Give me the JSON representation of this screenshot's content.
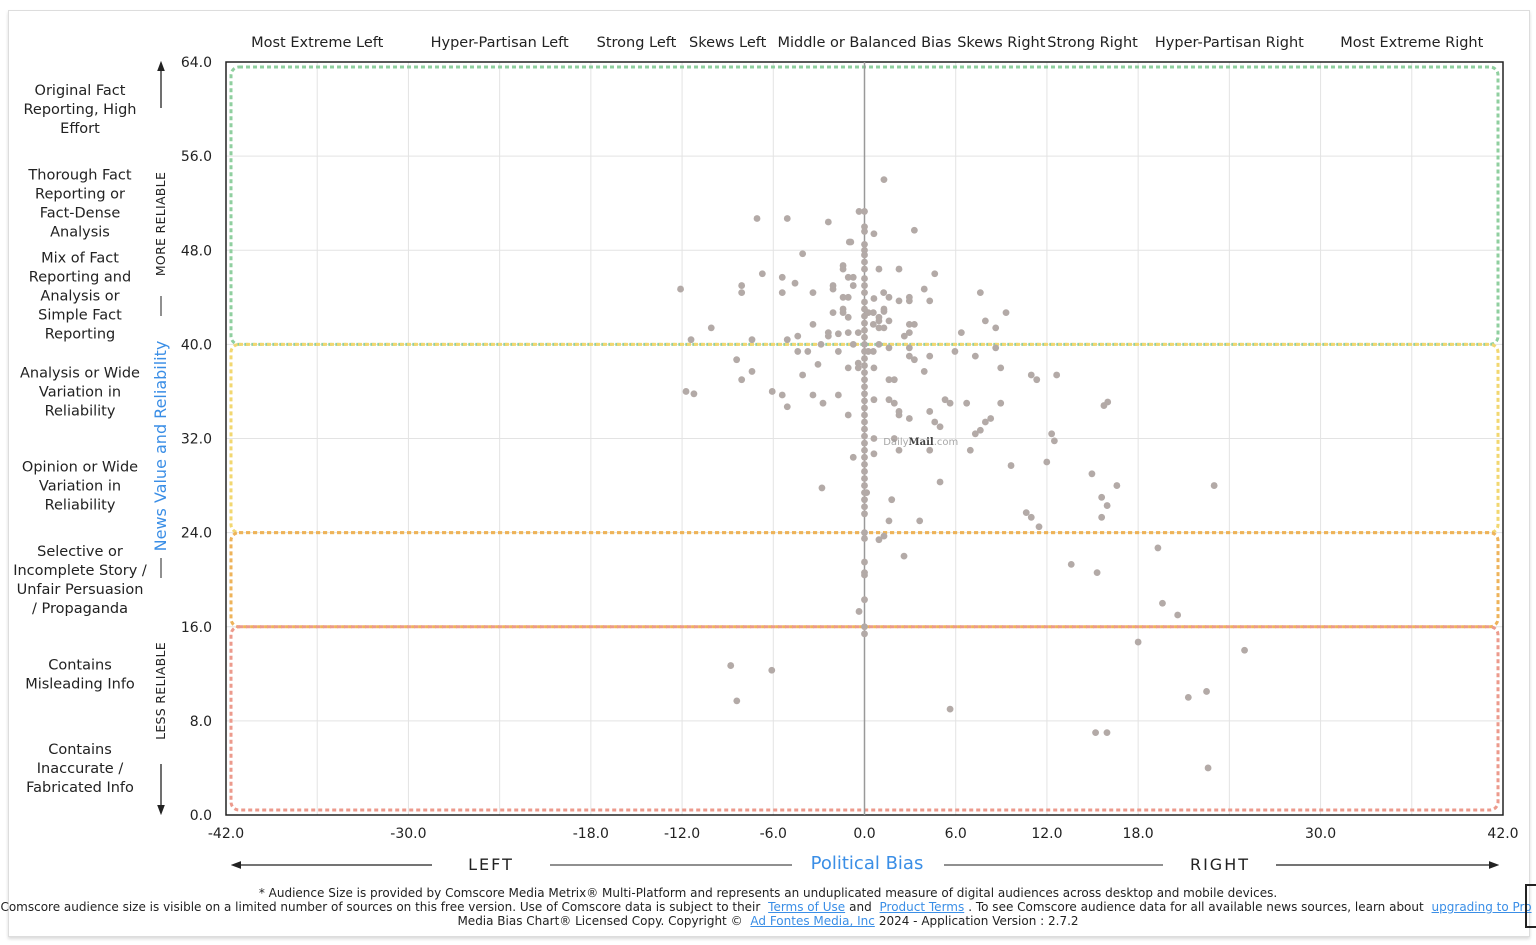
{
  "chart_data": {
    "type": "scatter",
    "xlabel": "Political Bias",
    "ylabel": "News Value and Reliability",
    "xlim": [
      -42,
      42
    ],
    "ylim": [
      0,
      64
    ],
    "x_ticks": [
      "-42.0",
      "-30.0",
      "-18.0",
      "-12.0",
      "-6.0",
      "0.0",
      "6.0",
      "12.0",
      "18.0",
      "30.0",
      "42.0"
    ],
    "y_ticks": [
      "0.0",
      "8.0",
      "16.0",
      "24.0",
      "32.0",
      "40.0",
      "48.0",
      "56.0",
      "64.0"
    ],
    "grid": true,
    "bias_categories": [
      "Most Extreme Left",
      "Hyper-Partisan Left",
      "Strong Left",
      "Skews Left",
      "Middle or Balanced Bias",
      "Skews Right",
      "Strong Right",
      "Hyper-Partisan Right",
      "Most Extreme Right"
    ],
    "reliability_categories": [
      "Original Fact Reporting, High Effort",
      "Thorough Fact Reporting or Fact-Dense Analysis",
      "Mix of Fact Reporting and Analysis or Simple Fact Reporting",
      "Analysis or Wide Variation in Reliability",
      "Opinion or Wide Variation in Reliability",
      "Selective or Incomplete Story / Unfair Persuasion / Propaganda",
      "Contains Misleading Info",
      "Contains Inaccurate / Fabricated Info"
    ],
    "reliability_bands": [
      {
        "from": 40,
        "to": 64,
        "color": "#8fcf9f"
      },
      {
        "from": 24,
        "to": 40,
        "color": "#f2d770"
      },
      {
        "from": 16,
        "to": 24,
        "color": "#eeb35a"
      },
      {
        "from": 0,
        "to": 16,
        "color": "#ec9a8c"
      }
    ],
    "more_reliable_label": "MORE RELIABLE",
    "less_reliable_label": "LESS RELIABLE",
    "left_label": "LEFT",
    "right_label": "RIGHT",
    "point_color": "#b3aaa7",
    "accent_color": "#3a8ee6",
    "labeled_point": {
      "label": "DailyMail.com",
      "x": 3.7,
      "y": 31.8
    },
    "points": [
      [
        1.28,
        54.0
      ],
      [
        -0.36,
        51.3
      ],
      [
        0,
        51.3
      ],
      [
        -7.07,
        50.7
      ],
      [
        -5.08,
        50.7
      ],
      [
        -2.38,
        50.4
      ],
      [
        3.28,
        49.7
      ],
      [
        0.62,
        49.4
      ],
      [
        -1.0,
        48.7
      ],
      [
        -0.9,
        48.7
      ],
      [
        -4.07,
        47.7
      ],
      [
        0.95,
        46.4
      ],
      [
        2.27,
        46.4
      ],
      [
        -1.41,
        46.7
      ],
      [
        -1.41,
        46.4
      ],
      [
        -6.72,
        46.0
      ],
      [
        4.62,
        46.0
      ],
      [
        -12.1,
        44.7
      ],
      [
        -8.08,
        45.0
      ],
      [
        -8.08,
        44.4
      ],
      [
        -5.41,
        45.7
      ],
      [
        -5.41,
        44.4
      ],
      [
        -4.57,
        45.2
      ],
      [
        -3.39,
        44.4
      ],
      [
        -2.07,
        45.0
      ],
      [
        -2.07,
        44.7
      ],
      [
        -1.07,
        45.7
      ],
      [
        -0.74,
        45.7
      ],
      [
        -0.74,
        45.0
      ],
      [
        -1.41,
        44.0
      ],
      [
        -1.07,
        44.0
      ],
      [
        3.93,
        44.7
      ],
      [
        1.26,
        44.4
      ],
      [
        1.61,
        44.0
      ],
      [
        2.27,
        43.7
      ],
      [
        2.95,
        44.0
      ],
      [
        2.95,
        43.7
      ],
      [
        4.29,
        43.7
      ],
      [
        7.62,
        44.4
      ],
      [
        9.31,
        42.7
      ],
      [
        7.95,
        42.0
      ],
      [
        8.63,
        41.4
      ],
      [
        6.37,
        41.0
      ],
      [
        8.63,
        39.7
      ],
      [
        0.62,
        43.9
      ],
      [
        1.28,
        43.0
      ],
      [
        1.28,
        42.8
      ],
      [
        -2.07,
        42.7
      ],
      [
        -1.41,
        43.0
      ],
      [
        -1.41,
        42.7
      ],
      [
        -1.07,
        42.3
      ],
      [
        0.25,
        42.7
      ],
      [
        0.58,
        42.7
      ],
      [
        0.95,
        42.3
      ],
      [
        0.58,
        41.7
      ],
      [
        0.95,
        42.0
      ],
      [
        1.61,
        42.0
      ],
      [
        0.95,
        41.4
      ],
      [
        1.28,
        41.4
      ],
      [
        2.95,
        41.7
      ],
      [
        3.28,
        41.7
      ],
      [
        2.95,
        41.0
      ],
      [
        2.62,
        40.7
      ],
      [
        -10.08,
        41.4
      ],
      [
        -11.41,
        40.4
      ],
      [
        -7.4,
        40.4
      ],
      [
        -5.08,
        40.4
      ],
      [
        -4.39,
        40.7
      ],
      [
        -3.39,
        41.7
      ],
      [
        -2.38,
        41.0
      ],
      [
        -2.38,
        40.7
      ],
      [
        -1.72,
        40.9
      ],
      [
        -1.07,
        41.0
      ],
      [
        -0.41,
        41.0
      ],
      [
        -2.86,
        40.0
      ],
      [
        -0.74,
        40.0
      ],
      [
        0.95,
        40.0
      ],
      [
        1.61,
        39.7
      ],
      [
        -4.39,
        39.4
      ],
      [
        -3.73,
        39.4
      ],
      [
        -1.72,
        39.4
      ],
      [
        0.25,
        39.4
      ],
      [
        0.58,
        39.4
      ],
      [
        2.95,
        39.7
      ],
      [
        2.95,
        39.0
      ],
      [
        3.28,
        38.7
      ],
      [
        4.29,
        39.0
      ],
      [
        5.95,
        39.4
      ],
      [
        7.29,
        39.0
      ],
      [
        -8.41,
        38.7
      ],
      [
        -7.4,
        37.7
      ],
      [
        -8.08,
        37.0
      ],
      [
        -4.07,
        37.4
      ],
      [
        -3.06,
        38.3
      ],
      [
        -1.07,
        38.0
      ],
      [
        -0.41,
        38.4
      ],
      [
        -0.41,
        38.0
      ],
      [
        0.62,
        38.0
      ],
      [
        3.93,
        37.7
      ],
      [
        8.96,
        38.0
      ],
      [
        1.61,
        37.0
      ],
      [
        1.96,
        37.0
      ],
      [
        10.97,
        37.4
      ],
      [
        11.33,
        37.0
      ],
      [
        12.64,
        37.4
      ],
      [
        -11.74,
        36.0
      ],
      [
        -11.22,
        35.8
      ],
      [
        -6.07,
        36.0
      ],
      [
        -5.41,
        35.7
      ],
      [
        -5.08,
        34.7
      ],
      [
        -3.39,
        35.7
      ],
      [
        -2.73,
        35.0
      ],
      [
        -1.72,
        35.7
      ],
      [
        0.62,
        35.3
      ],
      [
        1.61,
        35.3
      ],
      [
        1.96,
        35.0
      ],
      [
        2.27,
        34.3
      ],
      [
        2.27,
        34.0
      ],
      [
        2.95,
        33.7
      ],
      [
        4.29,
        34.3
      ],
      [
        4.62,
        33.4
      ],
      [
        4.97,
        33.0
      ],
      [
        5.3,
        35.3
      ],
      [
        5.63,
        35.0
      ],
      [
        6.72,
        35.0
      ],
      [
        8.96,
        35.0
      ],
      [
        8.3,
        33.7
      ],
      [
        7.95,
        33.4
      ],
      [
        7.62,
        32.7
      ],
      [
        7.29,
        32.4
      ],
      [
        -1.07,
        34.0
      ],
      [
        0.62,
        32.0
      ],
      [
        1.96,
        32.0
      ],
      [
        2.27,
        31.0
      ],
      [
        4.29,
        31.0
      ],
      [
        6.96,
        31.0
      ],
      [
        12.31,
        32.4
      ],
      [
        12.49,
        31.8
      ],
      [
        11.99,
        30.0
      ],
      [
        9.64,
        29.7
      ],
      [
        4.97,
        28.3
      ],
      [
        -0.74,
        30.4
      ],
      [
        0.62,
        30.7
      ],
      [
        -2.8,
        27.8
      ],
      [
        0.14,
        27.4
      ],
      [
        1.79,
        26.8
      ],
      [
        1.61,
        25.0
      ],
      [
        3.63,
        25.0
      ],
      [
        10.64,
        25.7
      ],
      [
        10.97,
        25.3
      ],
      [
        11.48,
        24.5
      ],
      [
        0.95,
        23.4
      ],
      [
        1.28,
        23.7
      ],
      [
        2.6,
        22.0
      ],
      [
        -0.36,
        17.3
      ],
      [
        5.63,
        9.0
      ],
      [
        13.6,
        21.3
      ],
      [
        15.3,
        20.6
      ],
      [
        14.96,
        29.0
      ],
      [
        15.6,
        27.0
      ],
      [
        15.96,
        26.3
      ],
      [
        15.6,
        25.3
      ],
      [
        16.6,
        28.0
      ],
      [
        15.75,
        34.8
      ],
      [
        16.0,
        35.1
      ],
      [
        19.3,
        22.7
      ],
      [
        19.6,
        18.0
      ],
      [
        20.6,
        17.0
      ],
      [
        23.0,
        28.0
      ],
      [
        18.0,
        14.7
      ],
      [
        25.0,
        14.0
      ],
      [
        21.3,
        10.0
      ],
      [
        22.5,
        10.5
      ],
      [
        15.2,
        7.0
      ],
      [
        15.95,
        7.0
      ],
      [
        22.6,
        4.0
      ],
      [
        -8.8,
        12.7
      ],
      [
        -8.4,
        9.7
      ],
      [
        -6.1,
        12.3
      ],
      [
        0,
        50.0
      ],
      [
        0,
        49.6
      ],
      [
        0,
        48.5
      ],
      [
        0,
        48.0
      ],
      [
        0,
        47.6
      ],
      [
        0,
        47.0
      ],
      [
        0,
        46.4
      ],
      [
        0,
        45.6
      ],
      [
        0,
        45.0
      ],
      [
        0,
        44.4
      ],
      [
        0,
        43.6
      ],
      [
        0,
        43.0
      ],
      [
        0,
        42.4
      ],
      [
        0,
        41.8
      ],
      [
        0,
        41.2
      ],
      [
        0,
        40.6
      ],
      [
        0,
        40.0
      ],
      [
        0,
        39.4
      ],
      [
        0,
        38.8
      ],
      [
        0,
        38.2
      ],
      [
        0,
        37.6
      ],
      [
        0,
        37.0
      ],
      [
        0,
        36.4
      ],
      [
        0,
        35.8
      ],
      [
        0,
        35.2
      ],
      [
        0,
        34.6
      ],
      [
        0,
        34.0
      ],
      [
        0,
        33.4
      ],
      [
        0,
        32.8
      ],
      [
        0,
        32.2
      ],
      [
        0,
        31.6
      ],
      [
        0,
        31.0
      ],
      [
        0,
        30.4
      ],
      [
        0,
        29.8
      ],
      [
        0,
        29.2
      ],
      [
        0,
        28.6
      ],
      [
        0,
        28.0
      ],
      [
        0,
        27.4
      ],
      [
        0,
        26.8
      ],
      [
        0,
        26.2
      ],
      [
        0,
        25.6
      ],
      [
        0,
        24.0
      ],
      [
        0,
        23.5
      ],
      [
        0,
        21.5
      ],
      [
        0,
        20.6
      ],
      [
        0,
        20.4
      ],
      [
        0,
        18.3
      ],
      [
        0,
        16.0
      ],
      [
        0,
        15.4
      ]
    ]
  },
  "footer": {
    "line1": "* Audience Size is provided by Comscore Media Metrix® Multi-Platform and represents an unduplicated measure of digital audiences across desktop and mobile devices.",
    "line2_a": "Comscore audience size is visible on a limited number of sources on this free version. Use of Comscore data is subject to their",
    "terms_link": "Terms of Use",
    "and": "and",
    "product_link": "Product Terms",
    "line2_b": ". To see Comscore audience data for all available news sources, learn about",
    "upgrade_link": "upgrading to Pro",
    "line3_a": "Media Bias Chart® Licensed Copy. Copyright ©",
    "company_link": "Ad Fontes Media, Inc",
    "line3_b": "2024 - Application Version : 2.7.2"
  }
}
